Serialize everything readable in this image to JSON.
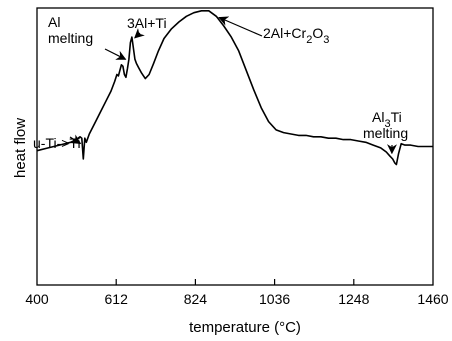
{
  "chart_data": {
    "type": "line",
    "title": "",
    "xlabel": "temperature (°C)",
    "ylabel": "heat flow",
    "xlim": [
      400,
      1460
    ],
    "ylim": [
      0,
      1
    ],
    "x_ticks": [
      400,
      612,
      824,
      1036,
      1248,
      1460
    ],
    "x_tick_labels": [
      "400",
      "612",
      "824",
      "1036",
      "1248",
      "1460"
    ],
    "y_ticks_shown": false,
    "grid": false,
    "legend": "none",
    "line_color": "#000000",
    "series": [
      {
        "x": [
          400,
          430,
          460,
          490,
          505,
          515,
          520,
          524,
          528,
          532,
          540,
          555,
          570,
          585,
          598,
          608,
          614,
          618,
          622,
          626,
          630,
          634,
          638,
          642,
          646,
          650,
          654,
          658,
          662,
          666,
          672,
          680,
          690,
          700,
          712,
          725,
          740,
          760,
          780,
          800,
          820,
          840,
          860,
          880,
          900,
          920,
          940,
          960,
          980,
          1000,
          1020,
          1040,
          1060,
          1080,
          1100,
          1120,
          1140,
          1160,
          1180,
          1200,
          1220,
          1240,
          1260,
          1280,
          1300,
          1320,
          1335,
          1345,
          1352,
          1358,
          1362,
          1368,
          1375,
          1385,
          1400,
          1420,
          1440,
          1460
        ],
        "y": [
          0.485,
          0.495,
          0.505,
          0.515,
          0.525,
          0.535,
          0.53,
          0.455,
          0.53,
          0.515,
          0.545,
          0.585,
          0.625,
          0.665,
          0.7,
          0.735,
          0.76,
          0.755,
          0.775,
          0.795,
          0.79,
          0.76,
          0.75,
          0.78,
          0.815,
          0.875,
          0.895,
          0.855,
          0.815,
          0.8,
          0.785,
          0.765,
          0.745,
          0.76,
          0.8,
          0.845,
          0.89,
          0.925,
          0.95,
          0.97,
          0.983,
          0.99,
          0.99,
          0.97,
          0.935,
          0.895,
          0.845,
          0.775,
          0.705,
          0.64,
          0.59,
          0.56,
          0.55,
          0.545,
          0.54,
          0.54,
          0.535,
          0.535,
          0.53,
          0.53,
          0.525,
          0.525,
          0.52,
          0.515,
          0.505,
          0.495,
          0.48,
          0.465,
          0.455,
          0.44,
          0.435,
          0.475,
          0.51,
          0.505,
          0.505,
          0.5,
          0.5,
          0.5
        ]
      }
    ],
    "annotations": [
      {
        "id": "u-ti",
        "lines": [
          {
            "text": "u-Ti->Ti"
          }
        ],
        "x": 523,
        "y": 0.505
      },
      {
        "id": "al-melting",
        "lines": [
          {
            "text": "Al"
          },
          {
            "text": "melting"
          }
        ],
        "x": 644,
        "y": 0.81
      },
      {
        "id": "3al-ti",
        "lines": [
          {
            "text": "3Al+Ti"
          }
        ],
        "x": 656,
        "y": 0.885
      },
      {
        "id": "2al-cr2o3",
        "lines": [
          {
            "text": "2Al+Cr"
          },
          {
            "text": "2",
            "sub": true
          },
          {
            "text": "O"
          },
          {
            "text": "3",
            "sub": true
          }
        ],
        "x": 880,
        "y": 0.97
      },
      {
        "id": "al3ti",
        "lines": [
          {
            "text": "Al"
          },
          {
            "text": "3",
            "sub": true
          },
          {
            "text": "Ti"
          }
        ],
        "line2": "melting",
        "x": 1350,
        "y": 0.465
      }
    ]
  }
}
